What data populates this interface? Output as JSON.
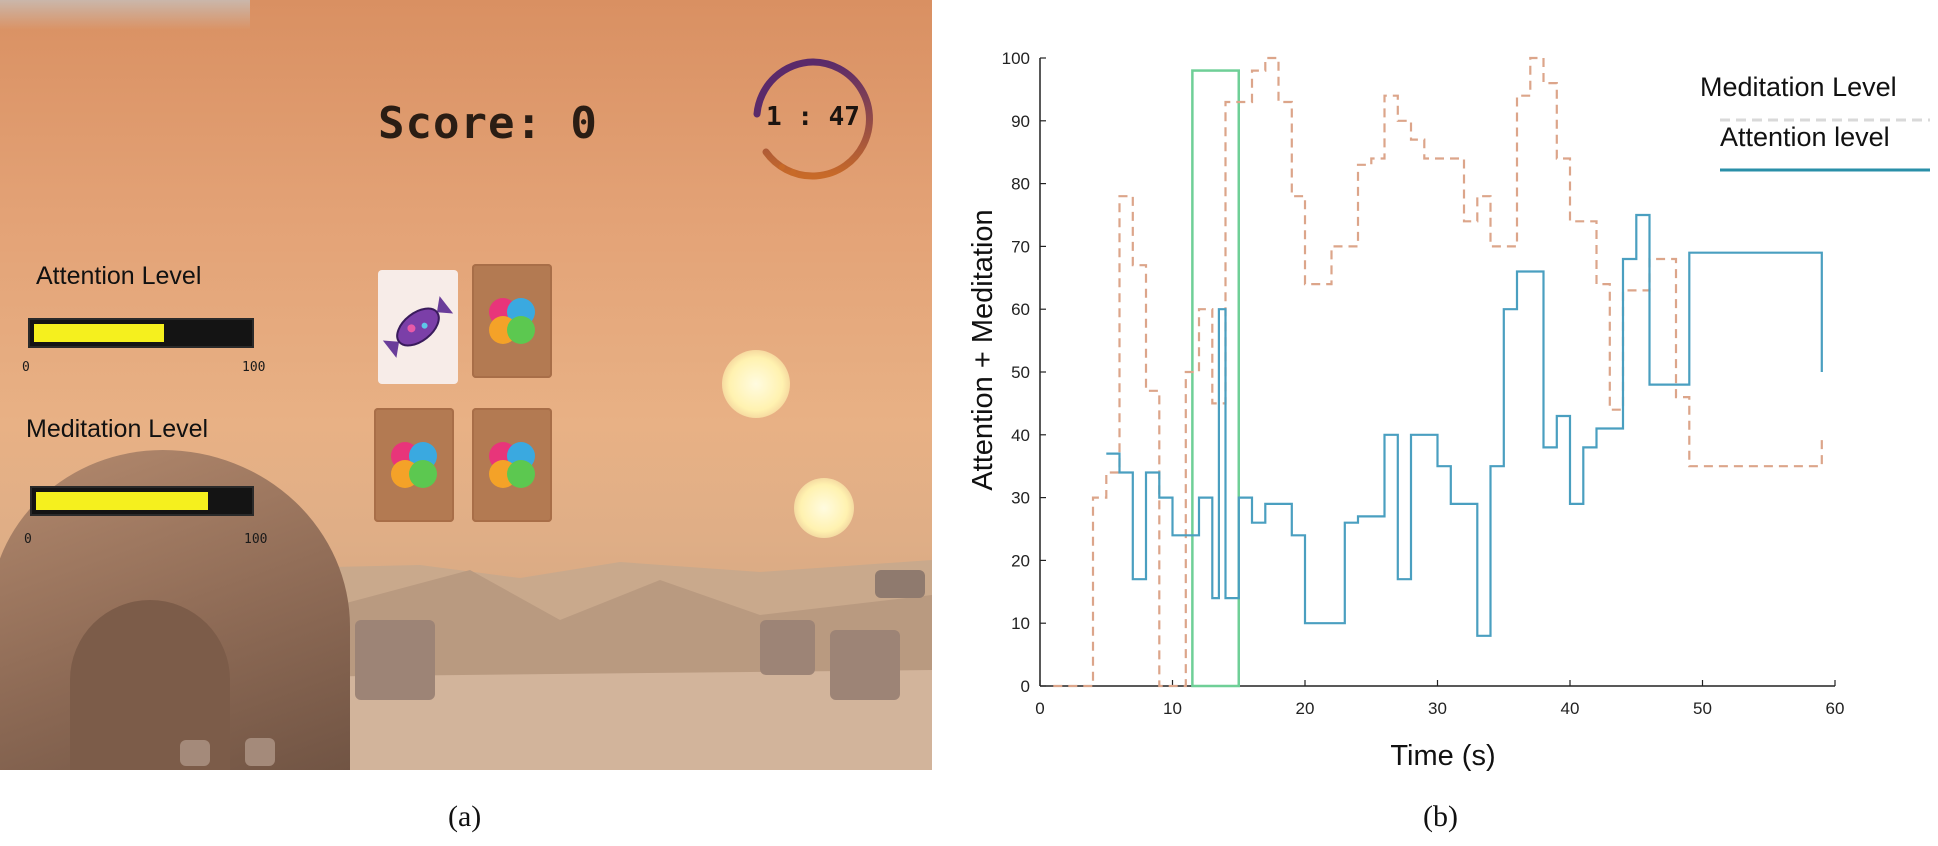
{
  "panel_a": {
    "caption": "(a)",
    "score_label": "Score: 0",
    "timer": "1 : 47",
    "attention": {
      "label": "Attention Level",
      "min": "0",
      "max": "100",
      "level": 0.62
    },
    "meditation": {
      "label": "Meditation Level",
      "min": "0",
      "max": "100",
      "level": 0.82
    },
    "cards": [
      {
        "state": "revealed",
        "icon": "candy-icon"
      },
      {
        "state": "hidden",
        "icon": "puzzle-icon"
      },
      {
        "state": "hidden",
        "icon": "puzzle-icon"
      },
      {
        "state": "hidden",
        "icon": "puzzle-icon"
      }
    ],
    "colors": {
      "bar_fill": "#f5f01e",
      "bar_track": "#141414",
      "card_back": "#b37a52"
    }
  },
  "panel_b": {
    "caption": "(b)",
    "chart_data": {
      "type": "line",
      "title": "",
      "xlabel": "Time (s)",
      "ylabel": "Attention + Meditation",
      "xlim": [
        0,
        60
      ],
      "ylim": [
        0,
        100
      ],
      "xticks": [
        "0",
        "10",
        "20",
        "30",
        "40",
        "50",
        "60"
      ],
      "yticks": [
        "0",
        "10",
        "20",
        "30",
        "40",
        "50",
        "60",
        "70",
        "80",
        "90",
        "100"
      ],
      "grid": false,
      "legend_position": "top-right",
      "series": [
        {
          "name": "Meditation Level",
          "style": "dashed-step",
          "color": "#dca58a",
          "points": [
            [
              1,
              0
            ],
            [
              4,
              0
            ],
            [
              4,
              30
            ],
            [
              5,
              30
            ],
            [
              5,
              34
            ],
            [
              6,
              34
            ],
            [
              6,
              78
            ],
            [
              7,
              78
            ],
            [
              7,
              67
            ],
            [
              8,
              67
            ],
            [
              8,
              47
            ],
            [
              9,
              47
            ],
            [
              9,
              0
            ],
            [
              11,
              0
            ],
            [
              11,
              50
            ],
            [
              12,
              50
            ],
            [
              12,
              60
            ],
            [
              13,
              60
            ],
            [
              13,
              45
            ],
            [
              14,
              45
            ],
            [
              14,
              93
            ],
            [
              16,
              93
            ],
            [
              16,
              98
            ],
            [
              17,
              98
            ],
            [
              17,
              100
            ],
            [
              18,
              100
            ],
            [
              18,
              93
            ],
            [
              19,
              93
            ],
            [
              19,
              78
            ],
            [
              20,
              78
            ],
            [
              20,
              64
            ],
            [
              22,
              64
            ],
            [
              22,
              70
            ],
            [
              24,
              70
            ],
            [
              24,
              83
            ],
            [
              25,
              83
            ],
            [
              25,
              84
            ],
            [
              26,
              84
            ],
            [
              26,
              94
            ],
            [
              27,
              94
            ],
            [
              27,
              90
            ],
            [
              28,
              90
            ],
            [
              28,
              87
            ],
            [
              29,
              87
            ],
            [
              29,
              84
            ],
            [
              32,
              84
            ],
            [
              32,
              74
            ],
            [
              33,
              74
            ],
            [
              33,
              78
            ],
            [
              34,
              78
            ],
            [
              34,
              70
            ],
            [
              36,
              70
            ],
            [
              36,
              94
            ],
            [
              37,
              94
            ],
            [
              37,
              100
            ],
            [
              38,
              100
            ],
            [
              38,
              96
            ],
            [
              39,
              96
            ],
            [
              39,
              84
            ],
            [
              40,
              84
            ],
            [
              40,
              74
            ],
            [
              42,
              74
            ],
            [
              42,
              64
            ],
            [
              43,
              64
            ],
            [
              43,
              44
            ],
            [
              44,
              44
            ],
            [
              44,
              63
            ],
            [
              46,
              63
            ],
            [
              46,
              68
            ],
            [
              48,
              68
            ],
            [
              48,
              46
            ],
            [
              49,
              46
            ],
            [
              49,
              35
            ],
            [
              59,
              35
            ],
            [
              59,
              40
            ]
          ]
        },
        {
          "name": "Attention level",
          "style": "solid-step",
          "color": "#4a9fc0",
          "points": [
            [
              5,
              37
            ],
            [
              6,
              37
            ],
            [
              6,
              34
            ],
            [
              7,
              34
            ],
            [
              7,
              17
            ],
            [
              8,
              17
            ],
            [
              8,
              34
            ],
            [
              9,
              34
            ],
            [
              9,
              30
            ],
            [
              10,
              30
            ],
            [
              10,
              24
            ],
            [
              12,
              24
            ],
            [
              12,
              30
            ],
            [
              13,
              30
            ],
            [
              13,
              14
            ],
            [
              13.5,
              14
            ],
            [
              13.5,
              60
            ],
            [
              14,
              60
            ],
            [
              14,
              14
            ],
            [
              15,
              14
            ],
            [
              15,
              30
            ],
            [
              16,
              30
            ],
            [
              16,
              26
            ],
            [
              17,
              26
            ],
            [
              17,
              29
            ],
            [
              19,
              29
            ],
            [
              19,
              24
            ],
            [
              20,
              24
            ],
            [
              20,
              10
            ],
            [
              23,
              10
            ],
            [
              23,
              26
            ],
            [
              24,
              26
            ],
            [
              24,
              27
            ],
            [
              26,
              27
            ],
            [
              26,
              40
            ],
            [
              27,
              40
            ],
            [
              27,
              17
            ],
            [
              28,
              17
            ],
            [
              28,
              40
            ],
            [
              30,
              40
            ],
            [
              30,
              35
            ],
            [
              31,
              35
            ],
            [
              31,
              29
            ],
            [
              33,
              29
            ],
            [
              33,
              8
            ],
            [
              34,
              8
            ],
            [
              34,
              35
            ],
            [
              35,
              35
            ],
            [
              35,
              60
            ],
            [
              36,
              60
            ],
            [
              36,
              66
            ],
            [
              38,
              66
            ],
            [
              38,
              38
            ],
            [
              39,
              38
            ],
            [
              39,
              43
            ],
            [
              40,
              43
            ],
            [
              40,
              29
            ],
            [
              41,
              29
            ],
            [
              41,
              38
            ],
            [
              42,
              38
            ],
            [
              42,
              41
            ],
            [
              44,
              41
            ],
            [
              44,
              68
            ],
            [
              45,
              68
            ],
            [
              45,
              75
            ],
            [
              46,
              75
            ],
            [
              46,
              48
            ],
            [
              49,
              48
            ],
            [
              49,
              69
            ],
            [
              59,
              69
            ],
            [
              59,
              50
            ]
          ]
        }
      ],
      "highlight_box": {
        "x": [
          11.5,
          15
        ],
        "y": [
          0,
          98
        ],
        "color": "#6fcf97"
      }
    }
  }
}
